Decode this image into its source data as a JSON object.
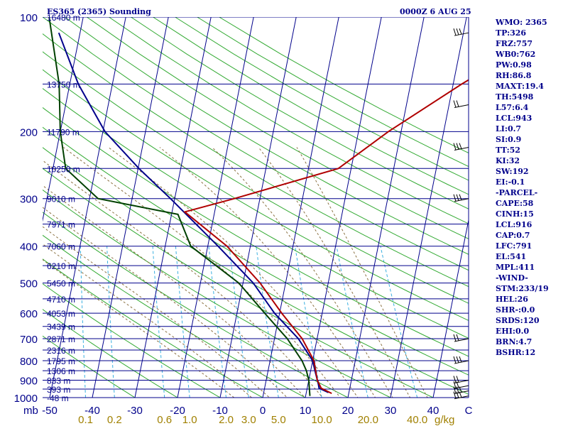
{
  "header": {
    "title": "ES365 (2365) Sounding",
    "timestamp": "0000Z  6 AUG 25"
  },
  "indices": [
    "WMO: 2365",
    "TP:326",
    "FRZ:757",
    "WB0:762",
    "PW:0.98",
    "RH:86.8",
    "MAXT:19.4",
    "TH:5498",
    "L57:6.4",
    "LCL:943",
    "LI:0.7",
    "SI:0.9",
    "TT:52",
    "KI:32",
    "SW:192",
    "EI:-0.1",
    "-PARCEL-",
    "CAPE:58",
    "CINH:15",
    "LCL:916",
    "CAP:0.7",
    "LFC:791",
    "EL:541",
    "MPL:411",
    "-WIND-",
    "STM:233/19",
    "HEL:26",
    "SHR-:0.0",
    "SRDS:120",
    "EHI:0.0",
    "BRN:4.7",
    "BSHR:12"
  ],
  "chart_data": {
    "type": "skew-t log-p",
    "title": "ES365 (2365) Sounding",
    "pressure_axis_label": "mb",
    "mixing_ratio_unit": "g/kg",
    "pressure_range_hpa": [
      1000,
      100
    ],
    "temperature_range_c": [
      -50,
      50
    ],
    "pressure_ticks": [
      {
        "p": 100,
        "label": "100"
      },
      {
        "p": 200,
        "label": "200"
      },
      {
        "p": 300,
        "label": "300"
      },
      {
        "p": 400,
        "label": "400"
      },
      {
        "p": 500,
        "label": "500"
      },
      {
        "p": 600,
        "label": "600"
      },
      {
        "p": 700,
        "label": "700"
      },
      {
        "p": 800,
        "label": "800"
      },
      {
        "p": 900,
        "label": "900"
      },
      {
        "p": 1000,
        "label": "1000"
      }
    ],
    "height_levels": [
      {
        "p": 100,
        "label": "16480 m"
      },
      {
        "p": 150,
        "label": "13750 m"
      },
      {
        "p": 200,
        "label": "11790 m"
      },
      {
        "p": 250,
        "label": "10250 m"
      },
      {
        "p": 300,
        "label": "9010 m"
      },
      {
        "p": 350,
        "label": "7971 m"
      },
      {
        "p": 400,
        "label": "7060 m"
      },
      {
        "p": 450,
        "label": "6210 m"
      },
      {
        "p": 500,
        "label": "5450 m"
      },
      {
        "p": 550,
        "label": "4710 m"
      },
      {
        "p": 600,
        "label": "4053 m"
      },
      {
        "p": 650,
        "label": "3439 m"
      },
      {
        "p": 700,
        "label": "2871 m"
      },
      {
        "p": 750,
        "label": "2316 m"
      },
      {
        "p": 800,
        "label": "1795 m"
      },
      {
        "p": 850,
        "label": "1306 m"
      },
      {
        "p": 900,
        "label": "833 m"
      },
      {
        "p": 950,
        "label": "393 m"
      },
      {
        "p": 1000,
        "label": "-48 m"
      }
    ],
    "temperature_ticks": [
      {
        "t": -50,
        "label": "-50"
      },
      {
        "t": -40,
        "label": "-40"
      },
      {
        "t": -30,
        "label": "-30"
      },
      {
        "t": -20,
        "label": "-20"
      },
      {
        "t": -10,
        "label": "-10"
      },
      {
        "t": 0,
        "label": "0"
      },
      {
        "t": 10,
        "label": "10"
      },
      {
        "t": 20,
        "label": "20"
      },
      {
        "t": 30,
        "label": "30"
      },
      {
        "t": 40,
        "label": "40"
      }
    ],
    "mixing_ratio_ticks": [
      {
        "w": 0.1,
        "label": "0.1"
      },
      {
        "w": 0.2,
        "label": "0.2"
      },
      {
        "w": 0.6,
        "label": "0.6"
      },
      {
        "w": 1.0,
        "label": "1.0"
      },
      {
        "w": 2.0,
        "label": "2.0"
      },
      {
        "w": 3.0,
        "label": "3.0"
      },
      {
        "w": 5.0,
        "label": "5.0"
      },
      {
        "w": 10.0,
        "label": "10.0"
      },
      {
        "w": 20.0,
        "label": "20.0"
      },
      {
        "w": 40.0,
        "label": "40.0"
      }
    ],
    "series": [
      {
        "key": "temperature",
        "color": "#00008b",
        "points": [
          {
            "p": 970,
            "t": 15.2
          },
          {
            "p": 945,
            "t": 12.8
          },
          {
            "p": 920,
            "t": 12.4
          },
          {
            "p": 850,
            "t": 11.0
          },
          {
            "p": 800,
            "t": 10.0
          },
          {
            "p": 700,
            "t": 5.6
          },
          {
            "p": 600,
            "t": -1.2
          },
          {
            "p": 500,
            "t": -7.6
          },
          {
            "p": 400,
            "t": -17.6
          },
          {
            "p": 300,
            "t": -31.0
          },
          {
            "p": 250,
            "t": -39.8
          },
          {
            "p": 200,
            "t": -49.5
          },
          {
            "p": 150,
            "t": -58.0
          },
          {
            "p": 110,
            "t": -65.0
          }
        ]
      },
      {
        "key": "dewpoint",
        "color": "#004000",
        "points": [
          {
            "p": 990,
            "t": 11.0
          },
          {
            "p": 900,
            "t": 10.0
          },
          {
            "p": 850,
            "t": 9.0
          },
          {
            "p": 800,
            "t": 7.5
          },
          {
            "p": 700,
            "t": 3.0
          },
          {
            "p": 600,
            "t": -3.5
          },
          {
            "p": 500,
            "t": -11.0
          },
          {
            "p": 400,
            "t": -24.0
          },
          {
            "p": 330,
            "t": -28.5
          },
          {
            "p": 300,
            "t": -48.0
          },
          {
            "p": 250,
            "t": -57.0
          },
          {
            "p": 200,
            "t": -60.0
          },
          {
            "p": 150,
            "t": -62.5
          },
          {
            "p": 100,
            "t": -68.0
          }
        ]
      },
      {
        "key": "parcel",
        "color": "#b00000",
        "points": [
          {
            "p": 975,
            "t": 16.0
          },
          {
            "p": 945,
            "t": 13.3
          },
          {
            "p": 900,
            "t": 12.0
          },
          {
            "p": 800,
            "t": 10.3
          },
          {
            "p": 700,
            "t": 6.5
          },
          {
            "p": 600,
            "t": 0.5
          },
          {
            "p": 500,
            "t": -6.0
          },
          {
            "p": 400,
            "t": -15.5
          },
          {
            "p": 325,
            "t": -27.0
          },
          {
            "p": 300,
            "t": -16.0
          },
          {
            "p": 250,
            "t": 7.0
          },
          {
            "p": 200,
            "t": 17.0
          },
          {
            "p": 150,
            "t": 32.0
          },
          {
            "p": 100,
            "t": 55.0
          }
        ]
      }
    ],
    "wind_barbs": [
      {
        "p": 990,
        "barbs": 3
      },
      {
        "p": 960,
        "barbs": 3
      },
      {
        "p": 930,
        "barbs": 2
      },
      {
        "p": 900,
        "barbs": 2
      },
      {
        "p": 800,
        "barbs": 3
      },
      {
        "p": 700,
        "barbs": 2
      },
      {
        "p": 300,
        "barbs": 3
      },
      {
        "p": 220,
        "barbs": 3
      },
      {
        "p": 170,
        "barbs": 2
      },
      {
        "p": 110,
        "barbs": 3
      }
    ],
    "grid": true
  }
}
